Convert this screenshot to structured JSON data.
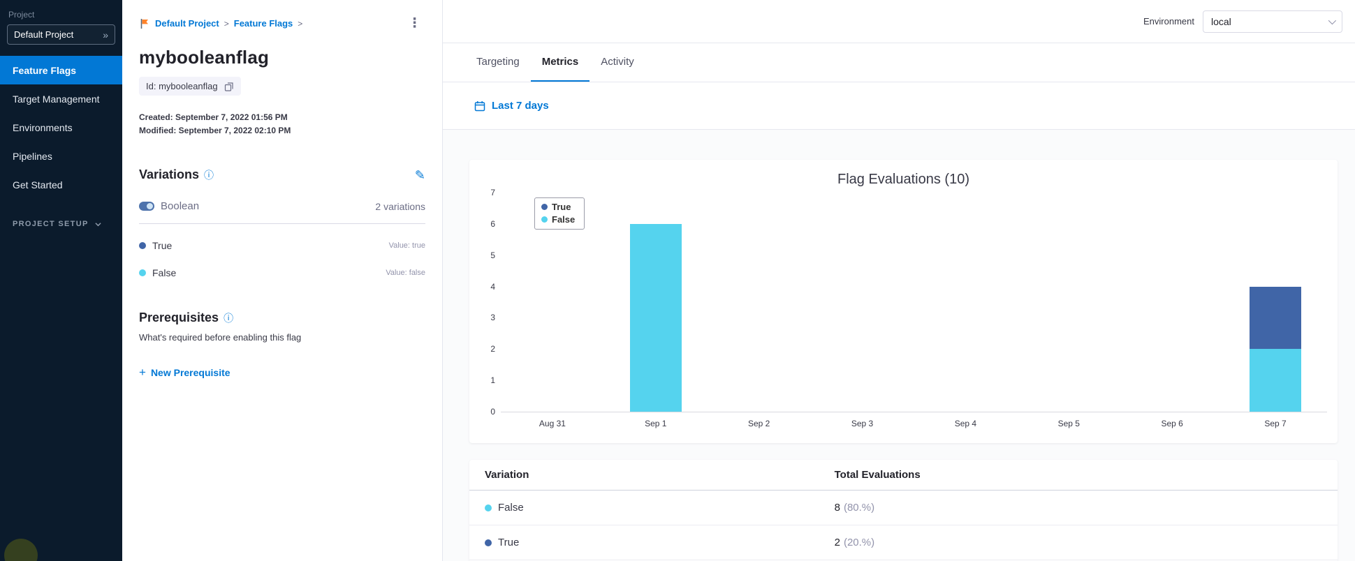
{
  "colors": {
    "accent": "#0278d5",
    "sidebar_bg": "#0b1b2c",
    "true_variation": "#4065a7",
    "false_variation": "#55d3ee"
  },
  "icons": {
    "kebab": "⋮",
    "double_chevron": "»",
    "plus": "+",
    "info": "ⓘ",
    "pencil": "✎",
    "breadcrumb_separator": ">"
  },
  "sidebar": {
    "project_label": "Project",
    "project_selector": "Default Project",
    "items": [
      {
        "label": "Feature Flags",
        "active": true
      },
      {
        "label": "Target Management",
        "active": false
      },
      {
        "label": "Environments",
        "active": false
      },
      {
        "label": "Pipelines",
        "active": false
      },
      {
        "label": "Get Started",
        "active": false
      }
    ],
    "project_setup_label": "PROJECT SETUP"
  },
  "detail": {
    "breadcrumb": {
      "items": [
        "Default Project",
        "Feature Flags"
      ]
    },
    "title": "mybooleanflag",
    "id_chip": "Id: mybooleanflag",
    "created": "Created: September 7, 2022 01:56 PM",
    "modified": "Modified: September 7, 2022 02:10 PM",
    "variations": {
      "heading": "Variations",
      "type_label": "Boolean",
      "count_label": "2 variations",
      "items": [
        {
          "name": "True",
          "value_label": "Value: true",
          "color": "#4065a7"
        },
        {
          "name": "False",
          "value_label": "Value: false",
          "color": "#55d3ee"
        }
      ]
    },
    "prerequisites": {
      "heading": "Prerequisites",
      "description": "What's required before enabling this flag",
      "new_button_label": "New Prerequisite"
    }
  },
  "header": {
    "environment_label": "Environment",
    "environment_value": "local"
  },
  "tabs": [
    {
      "label": "Targeting",
      "active": false
    },
    {
      "label": "Metrics",
      "active": true
    },
    {
      "label": "Activity",
      "active": false
    }
  ],
  "toolbar": {
    "date_range_label": "Last 7 days"
  },
  "chart_data": {
    "type": "bar",
    "stacked": true,
    "title": "Flag Evaluations (10)",
    "categories": [
      "Aug 31",
      "Sep 1",
      "Sep 2",
      "Sep 3",
      "Sep 4",
      "Sep 5",
      "Sep 6",
      "Sep 7"
    ],
    "series": [
      {
        "name": "True",
        "color": "#4065a7",
        "values": [
          0,
          0,
          0,
          0,
          0,
          0,
          0,
          2
        ]
      },
      {
        "name": "False",
        "color": "#55d3ee",
        "values": [
          0,
          6,
          0,
          0,
          0,
          0,
          0,
          2
        ]
      }
    ],
    "xlabel": "",
    "ylabel": "",
    "ylim": [
      0,
      7
    ],
    "yticks": [
      0,
      1,
      2,
      3,
      4,
      5,
      6,
      7
    ],
    "grid": false,
    "legend_position": "top-left-inside"
  },
  "table": {
    "headers": [
      "Variation",
      "Total Evaluations"
    ],
    "rows": [
      {
        "variation": "False",
        "color": "#55d3ee",
        "total": "8",
        "percent": "(80.%)"
      },
      {
        "variation": "True",
        "color": "#4065a7",
        "total": "2",
        "percent": "(20.%)"
      }
    ]
  }
}
